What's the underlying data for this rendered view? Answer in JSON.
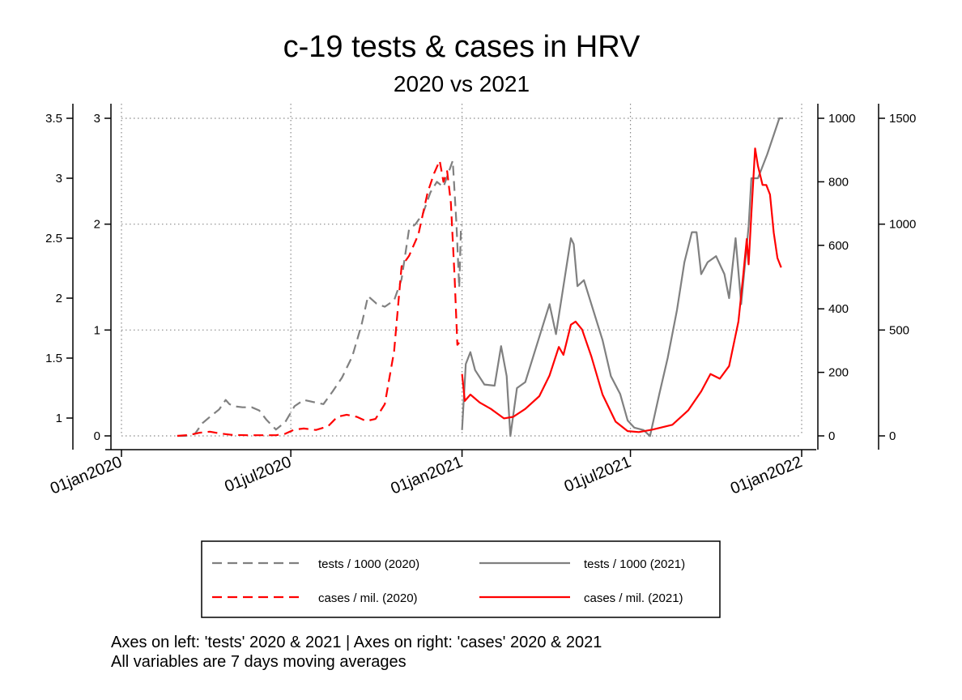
{
  "chart_data": {
    "type": "line",
    "title": "c-19 tests & cases in HRV",
    "subtitle": "2020 vs 2021",
    "x_axis": {
      "min": "2020-01-01",
      "max": "2022-01-01",
      "ticks": [
        "2020-01-01",
        "2020-07-01",
        "2021-01-01",
        "2021-07-01",
        "2022-01-01"
      ],
      "tick_labels": [
        "01jan2020",
        "01jul2020",
        "01jan2021",
        "01jul2021",
        "01jan2022"
      ]
    },
    "axes": [
      {
        "id": "L1",
        "side": "left",
        "min": 0.85,
        "max": 3.5,
        "ticks": [
          1,
          1.5,
          2,
          2.5,
          3,
          3.5
        ],
        "tick_labels": [
          "1",
          "1.5",
          "2",
          "2.5",
          "3",
          "3.5"
        ]
      },
      {
        "id": "L2",
        "side": "left",
        "min": 0,
        "max": 3,
        "ticks": [
          0,
          1,
          2,
          3
        ],
        "tick_labels": [
          "0",
          "1",
          "2",
          "3"
        ]
      },
      {
        "id": "R1",
        "side": "right",
        "min": 0,
        "max": 1000,
        "ticks": [
          0,
          200,
          400,
          600,
          800,
          1000
        ],
        "tick_labels": [
          "0",
          "200",
          "400",
          "600",
          "800",
          "1000"
        ]
      },
      {
        "id": "R2",
        "side": "right",
        "min": 0,
        "max": 1500,
        "ticks": [
          0,
          500,
          1000,
          1500
        ],
        "tick_labels": [
          "0",
          "500",
          "1000",
          "1500"
        ]
      }
    ],
    "grid": true,
    "series": [
      {
        "name": "tests / 1000 (2020)",
        "axis": "L2",
        "color": "#808080",
        "dash": "dashed",
        "points": [
          [
            "2020-03-01",
            0.0
          ],
          [
            "2020-03-10",
            0.0
          ],
          [
            "2020-03-20",
            0.02
          ],
          [
            "2020-03-28",
            0.12
          ],
          [
            "2020-04-05",
            0.18
          ],
          [
            "2020-04-15",
            0.25
          ],
          [
            "2020-04-22",
            0.34
          ],
          [
            "2020-04-26",
            0.3
          ],
          [
            "2020-05-01",
            0.28
          ],
          [
            "2020-05-10",
            0.27
          ],
          [
            "2020-05-20",
            0.27
          ],
          [
            "2020-05-28",
            0.24
          ],
          [
            "2020-06-05",
            0.15
          ],
          [
            "2020-06-15",
            0.06
          ],
          [
            "2020-06-25",
            0.13
          ],
          [
            "2020-07-05",
            0.28
          ],
          [
            "2020-07-15",
            0.34
          ],
          [
            "2020-07-25",
            0.32
          ],
          [
            "2020-08-05",
            0.3
          ],
          [
            "2020-08-15",
            0.42
          ],
          [
            "2020-08-25",
            0.55
          ],
          [
            "2020-09-05",
            0.75
          ],
          [
            "2020-09-15",
            1.05
          ],
          [
            "2020-09-22",
            1.32
          ],
          [
            "2020-10-01",
            1.25
          ],
          [
            "2020-10-10",
            1.22
          ],
          [
            "2020-10-20",
            1.28
          ],
          [
            "2020-10-28",
            1.48
          ],
          [
            "2020-11-05",
            1.95
          ],
          [
            "2020-11-12",
            2.0
          ],
          [
            "2020-11-20",
            2.1
          ],
          [
            "2020-11-28",
            2.3
          ],
          [
            "2020-12-05",
            2.4
          ],
          [
            "2020-12-12",
            2.35
          ],
          [
            "2020-12-18",
            2.5
          ],
          [
            "2020-12-22",
            2.6
          ],
          [
            "2020-12-26",
            2.0
          ],
          [
            "2020-12-29",
            1.4
          ],
          [
            "2020-12-31",
            2.0
          ]
        ]
      },
      {
        "name": "tests / 1000 (2021)",
        "axis": "L1",
        "color": "#808080",
        "dash": "solid",
        "points": [
          [
            "2021-01-01",
            0.9
          ],
          [
            "2021-01-05",
            1.45
          ],
          [
            "2021-01-10",
            1.55
          ],
          [
            "2021-01-15",
            1.4
          ],
          [
            "2021-01-25",
            1.28
          ],
          [
            "2021-02-05",
            1.27
          ],
          [
            "2021-02-12",
            1.6
          ],
          [
            "2021-02-18",
            1.35
          ],
          [
            "2021-02-22",
            0.85
          ],
          [
            "2021-03-01",
            1.25
          ],
          [
            "2021-03-10",
            1.3
          ],
          [
            "2021-03-20",
            1.55
          ],
          [
            "2021-04-01",
            1.85
          ],
          [
            "2021-04-05",
            1.95
          ],
          [
            "2021-04-12",
            1.7
          ],
          [
            "2021-04-22",
            2.2
          ],
          [
            "2021-04-28",
            2.5
          ],
          [
            "2021-05-01",
            2.45
          ],
          [
            "2021-05-05",
            2.1
          ],
          [
            "2021-05-12",
            2.15
          ],
          [
            "2021-05-20",
            1.95
          ],
          [
            "2021-06-01",
            1.65
          ],
          [
            "2021-06-10",
            1.35
          ],
          [
            "2021-06-20",
            1.2
          ],
          [
            "2021-06-28",
            0.98
          ],
          [
            "2021-07-05",
            0.92
          ],
          [
            "2021-07-15",
            0.9
          ],
          [
            "2021-07-22",
            0.85
          ],
          [
            "2021-08-01",
            1.2
          ],
          [
            "2021-08-10",
            1.5
          ],
          [
            "2021-08-20",
            1.9
          ],
          [
            "2021-08-28",
            2.3
          ],
          [
            "2021-09-05",
            2.55
          ],
          [
            "2021-09-10",
            2.55
          ],
          [
            "2021-09-15",
            2.2
          ],
          [
            "2021-09-22",
            2.3
          ],
          [
            "2021-10-01",
            2.35
          ],
          [
            "2021-10-10",
            2.2
          ],
          [
            "2021-10-15",
            2.0
          ],
          [
            "2021-10-22",
            2.5
          ],
          [
            "2021-10-28",
            1.95
          ],
          [
            "2021-11-05",
            2.6
          ],
          [
            "2021-11-08",
            3.0
          ],
          [
            "2021-11-15",
            3.0
          ],
          [
            "2021-11-25",
            3.2
          ],
          [
            "2021-12-08",
            3.5
          ],
          [
            "2021-12-12",
            3.5
          ]
        ]
      },
      {
        "name": "cases / mil. (2020)",
        "axis": "R2",
        "color": "#ff0000",
        "dash": "dashed",
        "points": [
          [
            "2020-03-01",
            0
          ],
          [
            "2020-03-15",
            5
          ],
          [
            "2020-03-25",
            15
          ],
          [
            "2020-04-05",
            20
          ],
          [
            "2020-04-15",
            12
          ],
          [
            "2020-04-28",
            5
          ],
          [
            "2020-05-15",
            3
          ],
          [
            "2020-06-15",
            3
          ],
          [
            "2020-06-25",
            10
          ],
          [
            "2020-07-05",
            30
          ],
          [
            "2020-07-15",
            35
          ],
          [
            "2020-07-28",
            28
          ],
          [
            "2020-08-10",
            45
          ],
          [
            "2020-08-20",
            90
          ],
          [
            "2020-08-30",
            100
          ],
          [
            "2020-09-10",
            90
          ],
          [
            "2020-09-20",
            70
          ],
          [
            "2020-09-30",
            80
          ],
          [
            "2020-10-10",
            150
          ],
          [
            "2020-10-20",
            400
          ],
          [
            "2020-10-28",
            800
          ],
          [
            "2020-11-05",
            850
          ],
          [
            "2020-11-15",
            950
          ],
          [
            "2020-11-25",
            1150
          ],
          [
            "2020-12-02",
            1240
          ],
          [
            "2020-12-08",
            1300
          ],
          [
            "2020-12-12",
            1200
          ],
          [
            "2020-12-16",
            1250
          ],
          [
            "2020-12-20",
            1100
          ],
          [
            "2020-12-24",
            750
          ],
          [
            "2020-12-27",
            430
          ],
          [
            "2020-12-29",
            440
          ]
        ]
      },
      {
        "name": "cases / mil. (2021)",
        "axis": "R1",
        "color": "#ff0000",
        "dash": "solid",
        "points": [
          [
            "2021-01-01",
            195
          ],
          [
            "2021-01-04",
            110
          ],
          [
            "2021-01-10",
            130
          ],
          [
            "2021-01-20",
            105
          ],
          [
            "2021-02-01",
            85
          ],
          [
            "2021-02-15",
            55
          ],
          [
            "2021-02-25",
            60
          ],
          [
            "2021-03-10",
            85
          ],
          [
            "2021-03-25",
            125
          ],
          [
            "2021-04-05",
            190
          ],
          [
            "2021-04-15",
            280
          ],
          [
            "2021-04-20",
            255
          ],
          [
            "2021-04-28",
            350
          ],
          [
            "2021-05-03",
            360
          ],
          [
            "2021-05-10",
            335
          ],
          [
            "2021-05-20",
            250
          ],
          [
            "2021-06-01",
            130
          ],
          [
            "2021-06-15",
            45
          ],
          [
            "2021-06-28",
            15
          ],
          [
            "2021-07-10",
            12
          ],
          [
            "2021-07-25",
            20
          ],
          [
            "2021-08-15",
            35
          ],
          [
            "2021-09-01",
            80
          ],
          [
            "2021-09-15",
            140
          ],
          [
            "2021-09-25",
            195
          ],
          [
            "2021-10-05",
            180
          ],
          [
            "2021-10-15",
            220
          ],
          [
            "2021-10-25",
            360
          ],
          [
            "2021-10-30",
            500
          ],
          [
            "2021-11-03",
            620
          ],
          [
            "2021-11-05",
            540
          ],
          [
            "2021-11-08",
            700
          ],
          [
            "2021-11-12",
            905
          ],
          [
            "2021-11-15",
            850
          ],
          [
            "2021-11-20",
            790
          ],
          [
            "2021-11-24",
            790
          ],
          [
            "2021-11-28",
            760
          ],
          [
            "2021-12-02",
            640
          ],
          [
            "2021-12-06",
            560
          ],
          [
            "2021-12-10",
            530
          ]
        ]
      }
    ],
    "legend": {
      "placement": "bottom",
      "entries": [
        "tests / 1000 (2020)",
        "tests / 1000 (2021)",
        "cases / mil. (2020)",
        "cases / mil. (2021)"
      ]
    },
    "notes": [
      "Axes on left: 'tests' 2020 & 2021 | Axes on right: 'cases' 2020 & 2021",
      "All variables are 7 days moving averages"
    ]
  }
}
